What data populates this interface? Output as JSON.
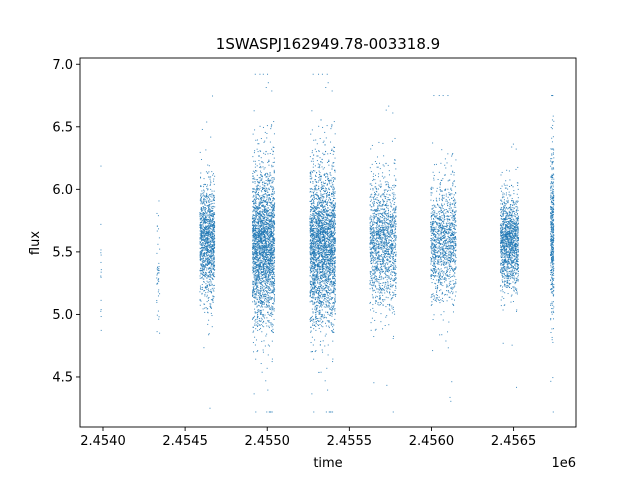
{
  "chart_data": {
    "type": "scatter",
    "title": "1SWASPJ162949.78-003318.9",
    "xlabel": "time",
    "ylabel": "flux",
    "x_offset_label": "1e6",
    "xlim": [
      2453860,
      2456880
    ],
    "ylim": [
      4.1,
      7.05
    ],
    "x_ticks": [
      2.454,
      2.4545,
      2.455,
      2.4555,
      2.456,
      2.4565
    ],
    "x_tick_labels": [
      "2.4540",
      "2.4545",
      "2.4550",
      "2.4555",
      "2.4560",
      "2.4565"
    ],
    "y_ticks": [
      4.5,
      5.0,
      5.5,
      6.0,
      6.5,
      7.0
    ],
    "y_tick_labels": [
      "4.5",
      "5.0",
      "5.5",
      "6.0",
      "6.5",
      "7.0"
    ],
    "grid": false,
    "marker_color": "#1f77b4",
    "seasons": [
      {
        "start": 2453986,
        "end": 2453990,
        "count": 15,
        "center": 5.35,
        "sd": 0.3,
        "min": 4.6,
        "max": 6.25
      },
      {
        "start": 2454327,
        "end": 2454345,
        "count": 45,
        "center": 5.4,
        "sd": 0.28,
        "min": 4.85,
        "max": 6.05
      },
      {
        "start": 2454590,
        "end": 2454680,
        "count": 1200,
        "center": 5.58,
        "sd": 0.22,
        "min": 4.25,
        "max": 6.8
      },
      {
        "start": 2454910,
        "end": 2455045,
        "count": 2500,
        "center": 5.55,
        "sd": 0.3,
        "min": 4.22,
        "max": 6.92
      },
      {
        "start": 2455260,
        "end": 2455415,
        "count": 2800,
        "center": 5.55,
        "sd": 0.3,
        "min": 4.22,
        "max": 6.92
      },
      {
        "start": 2455625,
        "end": 2455785,
        "count": 1400,
        "center": 5.58,
        "sd": 0.25,
        "min": 4.22,
        "max": 6.75
      },
      {
        "start": 2455995,
        "end": 2456150,
        "count": 1200,
        "center": 5.58,
        "sd": 0.22,
        "min": 4.25,
        "max": 6.75
      },
      {
        "start": 2456420,
        "end": 2456530,
        "count": 1300,
        "center": 5.58,
        "sd": 0.18,
        "min": 4.3,
        "max": 6.85
      },
      {
        "start": 2456725,
        "end": 2456745,
        "count": 450,
        "center": 5.65,
        "sd": 0.3,
        "min": 4.22,
        "max": 6.75
      }
    ]
  }
}
